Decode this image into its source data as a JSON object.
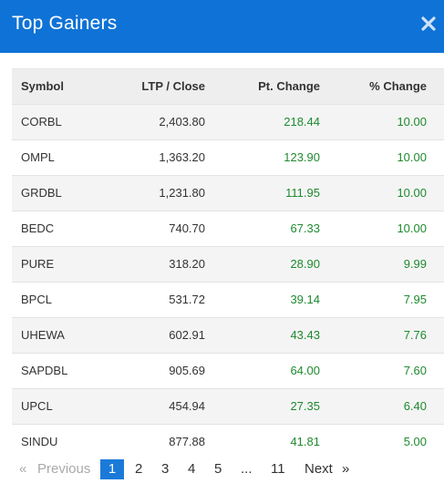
{
  "header": {
    "title": "Top Gainers",
    "close_icon": "close-icon"
  },
  "table": {
    "columns": [
      "Symbol",
      "LTP / Close",
      "Pt. Change",
      "% Change"
    ],
    "rows": [
      [
        "CORBL",
        "2,403.80",
        "218.44",
        "10.00"
      ],
      [
        "OMPL",
        "1,363.20",
        "123.90",
        "10.00"
      ],
      [
        "GRDBL",
        "1,231.80",
        "111.95",
        "10.00"
      ],
      [
        "BEDC",
        "740.70",
        "67.33",
        "10.00"
      ],
      [
        "PURE",
        "318.20",
        "28.90",
        "9.99"
      ],
      [
        "BPCL",
        "531.72",
        "39.14",
        "7.95"
      ],
      [
        "UHEWA",
        "602.91",
        "43.43",
        "7.76"
      ],
      [
        "SAPDBL",
        "905.69",
        "64.00",
        "7.60"
      ],
      [
        "UPCL",
        "454.94",
        "27.35",
        "6.40"
      ],
      [
        "SINDU",
        "877.88",
        "41.81",
        "5.00"
      ]
    ]
  },
  "pagination": {
    "prev_arrow": "«",
    "prev_label": "Previous",
    "pages": [
      "1",
      "2",
      "3",
      "4",
      "5"
    ],
    "ellipsis": "...",
    "last_page": "11",
    "next_label": "Next",
    "next_arrow": "»",
    "current_page": "1"
  },
  "colors": {
    "header_bg": "#0f72d6",
    "positive": "#1e8a2e",
    "active_page": "#1b7ad8"
  }
}
